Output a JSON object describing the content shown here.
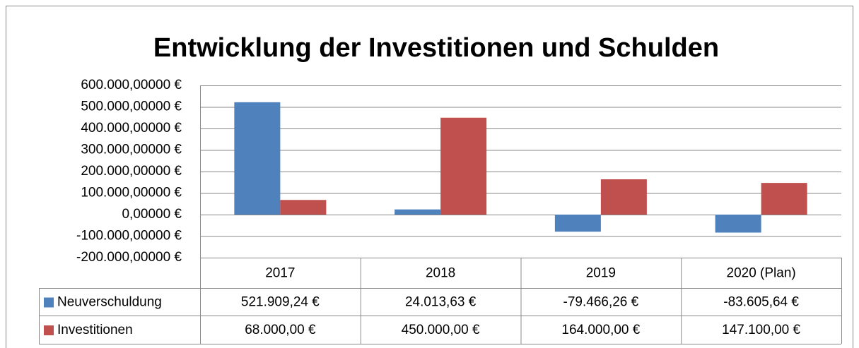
{
  "chart_data": {
    "type": "bar",
    "title": "Entwicklung der Investitionen und Schulden",
    "categories": [
      "2017",
      "2018",
      "2019",
      "2020 (Plan)"
    ],
    "series": [
      {
        "name": "Neuverschuldung",
        "color": "#4f81bd",
        "values": [
          521909.24,
          24013.63,
          -79466.26,
          -83605.64
        ],
        "value_labels": [
          "521.909,24 €",
          "24.013,63 €",
          "-79.466,26 €",
          "-83.605,64 €"
        ]
      },
      {
        "name": "Investitionen",
        "color": "#c0504d",
        "values": [
          68000,
          450000,
          164000,
          147100
        ],
        "value_labels": [
          "68.000,00 €",
          "450.000,00 €",
          "164.000,00 €",
          "147.100,00 €"
        ]
      }
    ],
    "ylim": [
      -200000,
      600000
    ],
    "yticks": [
      {
        "value": 600000,
        "label": "600.000,00000 €"
      },
      {
        "value": 500000,
        "label": "500.000,00000 €"
      },
      {
        "value": 400000,
        "label": "400.000,00000 €"
      },
      {
        "value": 300000,
        "label": "300.000,00000 €"
      },
      {
        "value": 200000,
        "label": "200.000,00000 €"
      },
      {
        "value": 100000,
        "label": "100.000,00000 €"
      },
      {
        "value": 0,
        "label": "0,00000 €"
      },
      {
        "value": -100000,
        "label": "-100.000,00000 €"
      },
      {
        "value": -200000,
        "label": "-200.000,00000 €"
      }
    ],
    "grid": true,
    "data_table": true
  }
}
